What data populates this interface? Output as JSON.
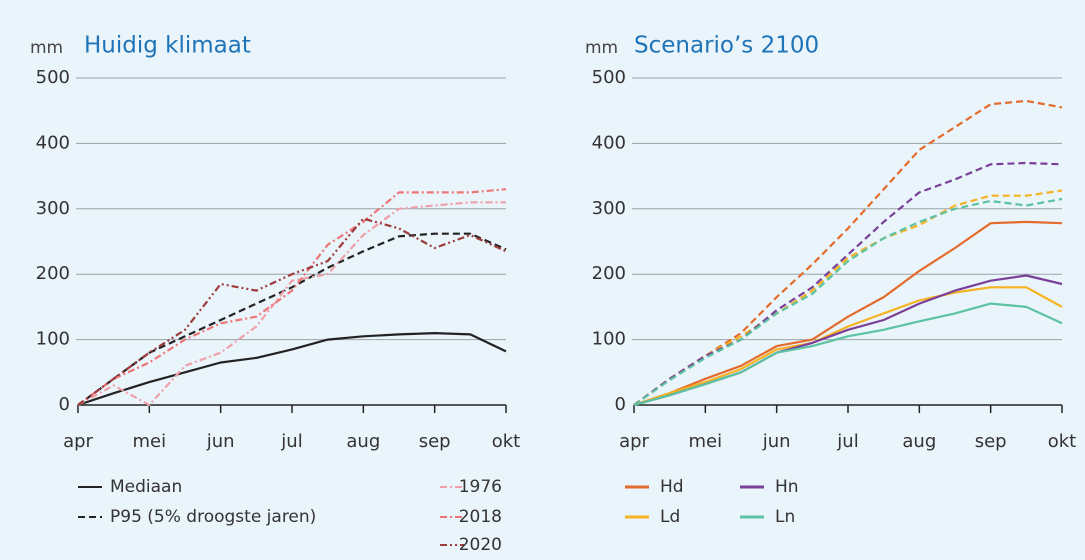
{
  "chart_data": [
    {
      "type": "line",
      "unit": "mm",
      "title": "Huidig klimaat",
      "x": [
        0,
        0.5,
        1,
        1.5,
        2,
        2.5,
        3,
        3.5,
        4,
        4.5,
        5,
        5.5,
        6
      ],
      "xlim": [
        0,
        6
      ],
      "xticks": [
        {
          "value": 0,
          "label": "apr"
        },
        {
          "value": 1,
          "label": "mei"
        },
        {
          "value": 2,
          "label": "jun"
        },
        {
          "value": 3,
          "label": "jul"
        },
        {
          "value": 4,
          "label": "aug"
        },
        {
          "value": 5,
          "label": "sep"
        },
        {
          "value": 6,
          "label": "okt"
        }
      ],
      "ylim": [
        0,
        500
      ],
      "yticks": [
        0,
        100,
        200,
        300,
        400,
        500
      ],
      "grid": true,
      "series": [
        {
          "name": "Mediaan",
          "color": "#222222",
          "style": "solid",
          "values": [
            0,
            18,
            35,
            50,
            65,
            72,
            85,
            100,
            105,
            108,
            110,
            108,
            82
          ]
        },
        {
          "name": "P95 (5% droogste jaren)",
          "color": "#222222",
          "style": "dashed",
          "values": [
            0,
            40,
            80,
            105,
            130,
            155,
            180,
            210,
            235,
            258,
            262,
            262,
            238
          ]
        },
        {
          "name": "1976",
          "color": "#f0a0a8",
          "style": "dashdot",
          "values": [
            0,
            30,
            0,
            60,
            80,
            120,
            190,
            200,
            260,
            300,
            305,
            310,
            310
          ]
        },
        {
          "name": "2018",
          "color": "#ec7676",
          "style": "dashdot",
          "values": [
            0,
            40,
            65,
            100,
            125,
            135,
            175,
            245,
            280,
            325,
            325,
            325,
            330
          ]
        },
        {
          "name": "2020",
          "color": "#9e3b3b",
          "style": "dashdotdot",
          "values": [
            0,
            40,
            80,
            115,
            185,
            175,
            200,
            220,
            285,
            270,
            240,
            260,
            235
          ]
        }
      ]
    },
    {
      "type": "line",
      "unit": "mm",
      "title": "Scenario’s 2100",
      "x": [
        0,
        0.5,
        1,
        1.5,
        2,
        2.5,
        3,
        3.5,
        4,
        4.5,
        5,
        5.5,
        6
      ],
      "xlim": [
        0,
        6
      ],
      "xticks": [
        {
          "value": 0,
          "label": "apr"
        },
        {
          "value": 1,
          "label": "mei"
        },
        {
          "value": 2,
          "label": "jun"
        },
        {
          "value": 3,
          "label": "jul"
        },
        {
          "value": 4,
          "label": "aug"
        },
        {
          "value": 5,
          "label": "sep"
        },
        {
          "value": 6,
          "label": "okt"
        }
      ],
      "ylim": [
        0,
        500
      ],
      "yticks": [
        0,
        100,
        200,
        300,
        400,
        500
      ],
      "grid": true,
      "series": [
        {
          "name": "Hd",
          "color": "#e36b2c",
          "style": "solid",
          "values": [
            0,
            18,
            40,
            60,
            90,
            100,
            135,
            165,
            205,
            240,
            278,
            280,
            278
          ],
          "p95": [
            0,
            40,
            75,
            110,
            165,
            215,
            270,
            330,
            390,
            425,
            460,
            465,
            455
          ]
        },
        {
          "name": "Ld",
          "color": "#f5b223",
          "style": "solid",
          "values": [
            0,
            18,
            35,
            55,
            85,
            95,
            120,
            140,
            160,
            172,
            180,
            180,
            150
          ],
          "p95": [
            0,
            40,
            75,
            105,
            140,
            175,
            225,
            255,
            275,
            305,
            320,
            320,
            328
          ]
        },
        {
          "name": "Hn",
          "color": "#7a3f98",
          "style": "solid",
          "values": [
            0,
            15,
            32,
            50,
            80,
            95,
            115,
            130,
            155,
            175,
            190,
            198,
            185
          ],
          "p95": [
            0,
            40,
            75,
            100,
            145,
            180,
            230,
            280,
            325,
            345,
            368,
            370,
            368
          ]
        },
        {
          "name": "Ln",
          "color": "#5cc3a2",
          "style": "solid",
          "values": [
            0,
            15,
            32,
            50,
            80,
            90,
            105,
            115,
            128,
            140,
            155,
            150,
            125
          ],
          "p95": [
            0,
            38,
            72,
            100,
            140,
            170,
            220,
            255,
            280,
            300,
            312,
            305,
            315
          ]
        }
      ]
    }
  ]
}
